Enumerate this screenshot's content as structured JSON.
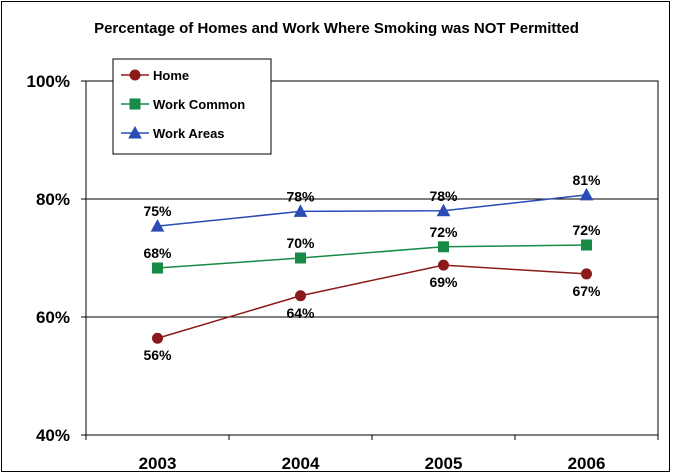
{
  "chart_data": {
    "type": "line",
    "title": "Percentage of Homes and Work Where Smoking was NOT Permitted",
    "xlabel": "",
    "ylabel": "",
    "categories": [
      "2003",
      "2004",
      "2005",
      "2006"
    ],
    "ylim": [
      40,
      100
    ],
    "yticks": [
      {
        "value": 40,
        "label": "40%"
      },
      {
        "value": 60,
        "label": "60%"
      },
      {
        "value": 80,
        "label": "80%"
      },
      {
        "value": 100,
        "label": "100%"
      }
    ],
    "grid": true,
    "legend_position": "top-left",
    "series": [
      {
        "name": "Home",
        "values": [
          56.4,
          63.6,
          68.8,
          67.3
        ],
        "labels": [
          "56%",
          "64%",
          "69%",
          "67%"
        ],
        "label_side": [
          "below",
          "below",
          "below",
          "below"
        ],
        "color": "#8B1A1A",
        "marker": "circle"
      },
      {
        "name": "Work Common",
        "values": [
          68.3,
          70.0,
          71.9,
          72.2
        ],
        "labels": [
          "68%",
          "70%",
          "72%",
          "72%"
        ],
        "label_side": [
          "above",
          "above",
          "above",
          "above"
        ],
        "color": "#178A45",
        "marker": "square"
      },
      {
        "name": "Work Areas",
        "values": [
          75.4,
          77.9,
          78.0,
          80.7
        ],
        "labels": [
          "75%",
          "78%",
          "78%",
          "81%"
        ],
        "label_side": [
          "above",
          "above",
          "above",
          "above"
        ],
        "color": "#2B4BB5",
        "marker": "triangle"
      }
    ]
  }
}
